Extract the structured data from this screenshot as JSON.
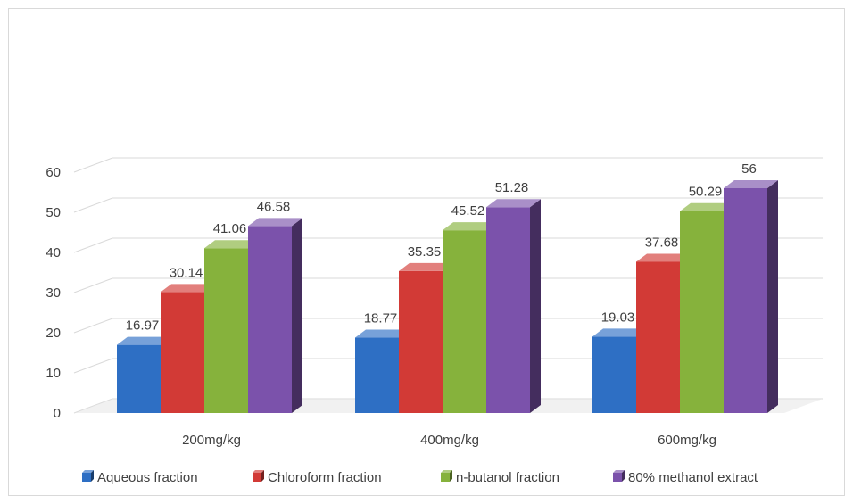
{
  "chart_data": {
    "type": "bar",
    "categories": [
      "200mg/kg",
      "400mg/kg",
      "600mg/kg"
    ],
    "series": [
      {
        "name": "Aqueous fraction",
        "values": [
          16.97,
          18.77,
          19.03
        ],
        "color": "#2e6fc4"
      },
      {
        "name": "Chloroform fraction",
        "values": [
          30.14,
          35.35,
          37.68
        ],
        "color": "#d23a36"
      },
      {
        "name": "n-butanol fraction",
        "values": [
          41.06,
          45.52,
          50.29
        ],
        "color": "#86b23c"
      },
      {
        "name": "80% methanol extract",
        "values": [
          46.58,
          51.28,
          56
        ],
        "color": "#7b52ab"
      }
    ],
    "data_labels": [
      [
        "16.97",
        "18.77",
        "19.03"
      ],
      [
        "30.14",
        "35.35",
        "37.68"
      ],
      [
        "41.06",
        "45.52",
        "50.29"
      ],
      [
        "46.58",
        "51.28",
        "56"
      ]
    ],
    "y_ticks": [
      "0",
      "10",
      "20",
      "30",
      "40",
      "50",
      "60"
    ],
    "ylim": [
      0,
      60
    ],
    "grid": true,
    "legend_position": "bottom",
    "style": "3d-clustered-column"
  }
}
